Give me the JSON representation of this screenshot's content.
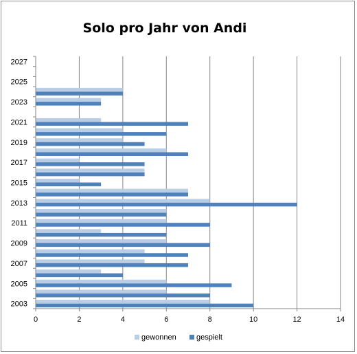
{
  "chart_data": {
    "type": "bar",
    "orientation": "horizontal",
    "title": "Solo pro Jahr von Andi",
    "xlabel": "",
    "ylabel": "",
    "xlim": [
      0,
      14
    ],
    "x_ticks": [
      "0",
      "2",
      "4",
      "6",
      "8",
      "10",
      "12",
      "14"
    ],
    "y_tick_labels": [
      "2003",
      "2005",
      "2007",
      "2009",
      "2011",
      "2013",
      "2015",
      "2017",
      "2019",
      "2021",
      "2023",
      "2025",
      "2027"
    ],
    "grid": true,
    "legend_position": "bottom",
    "categories": [
      "2003",
      "2004",
      "2005",
      "2006",
      "2007",
      "2008",
      "2009",
      "2010",
      "2011",
      "2012",
      "2013",
      "2014",
      "2015",
      "2016",
      "2017",
      "2018",
      "2019",
      "2020",
      "2021",
      "2022",
      "2023",
      "2024",
      "2025",
      "2026",
      "2027"
    ],
    "series": [
      {
        "name": "gewonnen",
        "color": "#b9cde5",
        "values": [
          8,
          6,
          6,
          3,
          5,
          5,
          6,
          3,
          6,
          6,
          8,
          7,
          2,
          5,
          2,
          6,
          4,
          4,
          3,
          null,
          3,
          4,
          null,
          null,
          null
        ]
      },
      {
        "name": "gespielt",
        "color": "#4f81bd",
        "values": [
          10,
          8,
          9,
          4,
          7,
          7,
          8,
          6,
          8,
          6,
          12,
          7,
          3,
          5,
          5,
          7,
          5,
          6,
          7,
          null,
          3,
          4,
          null,
          null,
          null
        ]
      }
    ]
  }
}
